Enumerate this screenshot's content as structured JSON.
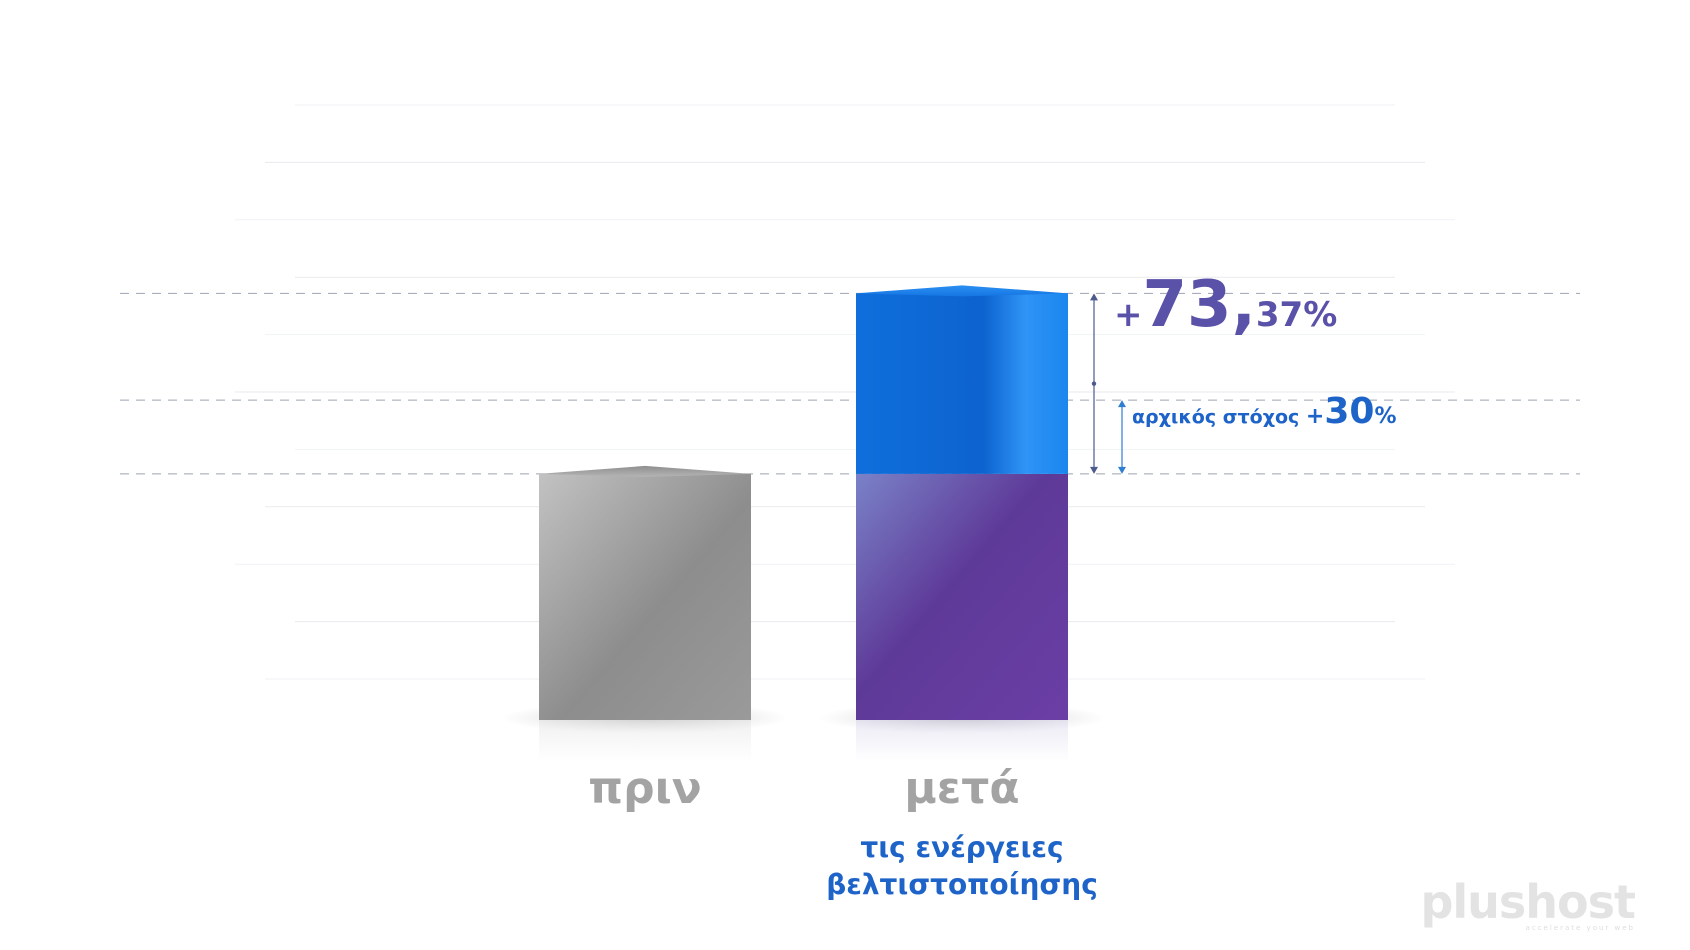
{
  "colors": {
    "before_bar": "#9e9e9e",
    "after_bar_baseline": "#5b2f8e",
    "after_bar_increase": "#1a80ea",
    "increase_label": "#5a51a8",
    "target_label": "#1e64c8",
    "category_label": "#a3a3a3"
  },
  "chart_data": {
    "type": "bar",
    "title": "",
    "xlabel": "",
    "ylabel": "",
    "grid": true,
    "legend": "none",
    "ylim": [
      0,
      230
    ],
    "categories": [
      "πριν",
      "μετά"
    ],
    "category_sublabels": [
      "",
      "τις ενέργειες\nβελτιστοποίησης"
    ],
    "series": [
      {
        "values": [
          100,
          100
        ]
      },
      {
        "values": [
          0,
          73.37
        ]
      }
    ],
    "reference_levels": [
      100,
      130,
      173.37
    ],
    "annotations": {
      "increase": {
        "prefix": "+",
        "main": "73,",
        "rest": "37%",
        "from": 100,
        "to": 173.37
      },
      "target": {
        "label": "αρχικός στόχος",
        "prefix": "+",
        "main": "30",
        "suffix": "%",
        "from": 100,
        "to": 130
      }
    }
  },
  "logo": {
    "text": "plushost",
    "tagline": "accelerate your web"
  }
}
